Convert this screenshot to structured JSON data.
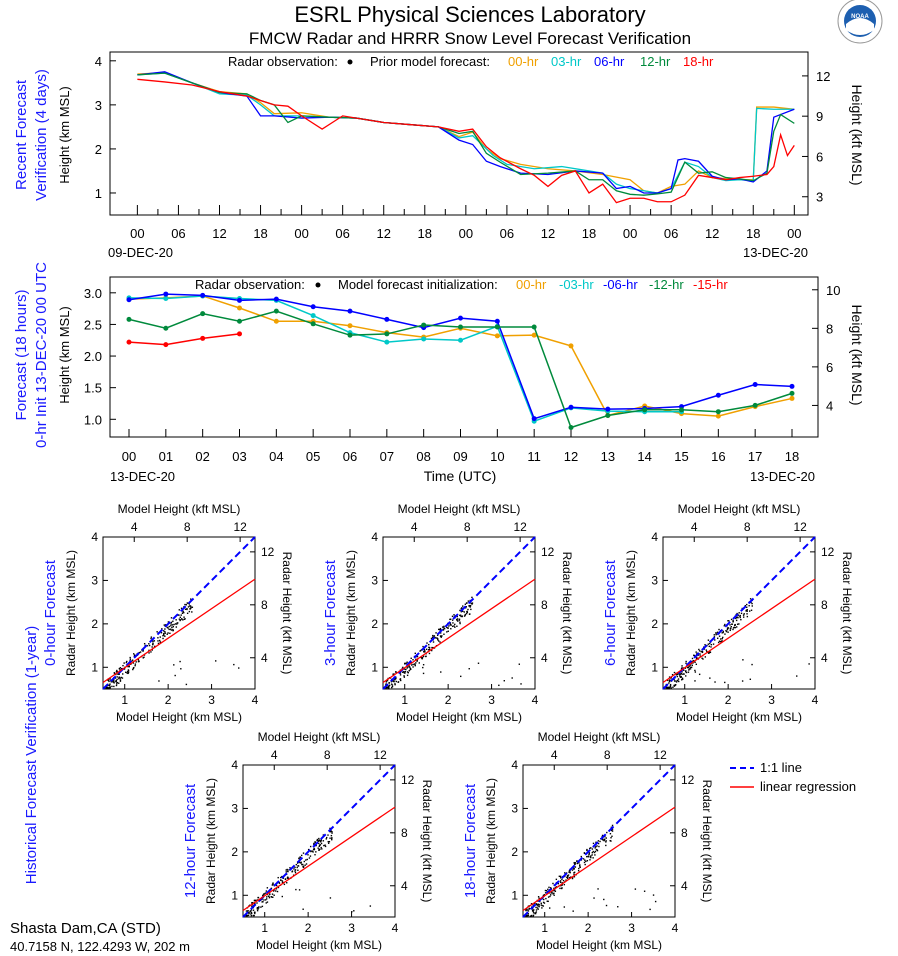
{
  "header": {
    "title": "ESRL Physical Sciences Laboratory",
    "subtitle": "FMCW Radar and HRRR Snow Level Forecast Verification",
    "logo_text": "NOAA"
  },
  "colors": {
    "00": "#f0a000",
    "03": "#00c8c8",
    "06": "#0000ff",
    "12": "#008a3c",
    "15": "#ff0000",
    "18": "#ff0000",
    "label": "#1a1aff"
  },
  "chart_data": [
    {
      "type": "line",
      "title_lines": [
        "Recent Forecast",
        "Verification (4 days)"
      ],
      "ylabel": "Height (km MSL)",
      "ylabel_right": "Height (kft MSL)",
      "legend_obs": "Radar observation:",
      "legend_title": "Prior model forecast:",
      "xticks": [
        "00",
        "06",
        "12",
        "18",
        "00",
        "06",
        "12",
        "18",
        "00",
        "06",
        "12",
        "18",
        "00",
        "06",
        "12",
        "18",
        "00"
      ],
      "xtick_hours": [
        0,
        6,
        12,
        18,
        24,
        30,
        36,
        42,
        48,
        54,
        60,
        66,
        72,
        78,
        84,
        90,
        96
      ],
      "yticks": [
        1,
        2,
        3,
        4
      ],
      "yticks_right": [
        3,
        6,
        9,
        12
      ],
      "date_start": "09-DEC-20",
      "date_end": "13-DEC-20",
      "ylim": [
        0.5,
        4.2
      ],
      "xlim": [
        -4,
        98
      ],
      "series": [
        {
          "name": "00-hr",
          "color_key": "00",
          "x": [
            0,
            4,
            8,
            12,
            16,
            18,
            20,
            24,
            28,
            32,
            36,
            40,
            44,
            47,
            49,
            51,
            53,
            56,
            60,
            64,
            68,
            72,
            74,
            76,
            78,
            80,
            82,
            84,
            88,
            90,
            90.5,
            93,
            96
          ],
          "y": [
            3.7,
            3.73,
            3.5,
            3.3,
            3.25,
            3.05,
            2.8,
            2.82,
            2.72,
            2.7,
            2.6,
            2.55,
            2.5,
            2.28,
            2.38,
            2.0,
            1.78,
            1.65,
            1.55,
            1.5,
            1.42,
            1.3,
            1.05,
            1.0,
            1.15,
            1.2,
            1.5,
            1.35,
            1.3,
            1.3,
            2.95,
            2.95,
            2.9
          ]
        },
        {
          "name": "03-hr",
          "color_key": "03",
          "x": [
            0,
            4,
            8,
            12,
            16,
            18,
            20,
            24,
            28,
            32,
            36,
            40,
            44,
            47,
            49,
            52,
            54,
            58,
            62,
            66,
            68,
            70,
            72,
            74,
            76,
            78,
            80,
            82,
            84,
            86,
            88,
            90,
            90.5,
            93,
            96
          ],
          "y": [
            3.68,
            3.72,
            3.5,
            3.25,
            3.22,
            3.0,
            2.75,
            2.75,
            2.72,
            2.7,
            2.6,
            2.55,
            2.5,
            2.25,
            2.3,
            1.85,
            1.65,
            1.55,
            1.6,
            1.5,
            1.45,
            1.2,
            1.1,
            1.05,
            1.0,
            1.1,
            1.7,
            1.6,
            1.35,
            1.28,
            1.3,
            1.28,
            2.92,
            2.9,
            2.9
          ]
        },
        {
          "name": "06-hr",
          "color_key": "06",
          "x": [
            0,
            4,
            8,
            12,
            16,
            18,
            20,
            24,
            28,
            32,
            36,
            40,
            44,
            47,
            49,
            51,
            53,
            56,
            60,
            64,
            68,
            70,
            72,
            74,
            76,
            78,
            79,
            80,
            82,
            84,
            86,
            88,
            90,
            92,
            93,
            96
          ],
          "y": [
            3.68,
            3.75,
            3.5,
            3.28,
            3.2,
            2.75,
            2.75,
            2.7,
            2.72,
            2.7,
            2.6,
            2.55,
            2.5,
            2.2,
            2.1,
            1.72,
            1.6,
            1.45,
            1.42,
            1.5,
            1.45,
            1.1,
            1.15,
            1.0,
            1.0,
            1.1,
            1.75,
            1.78,
            1.72,
            1.38,
            1.3,
            1.32,
            1.25,
            1.5,
            2.72,
            2.9
          ]
        },
        {
          "name": "12-hr",
          "color_key": "12",
          "x": [
            0,
            4,
            8,
            12,
            16,
            18,
            20,
            22,
            24,
            28,
            32,
            36,
            40,
            44,
            47,
            49,
            51,
            53,
            56,
            60,
            64,
            66,
            68,
            70,
            72,
            74,
            76,
            78,
            80,
            82,
            84,
            86,
            88,
            90,
            92,
            93,
            94,
            96
          ],
          "y": [
            3.68,
            3.72,
            3.5,
            3.28,
            3.25,
            3.1,
            3.0,
            2.6,
            2.75,
            2.72,
            2.7,
            2.6,
            2.55,
            2.5,
            2.35,
            2.4,
            1.9,
            1.7,
            1.42,
            1.45,
            1.5,
            1.3,
            1.3,
            1.05,
            0.97,
            0.95,
            0.98,
            1.02,
            1.7,
            1.45,
            1.48,
            1.35,
            1.32,
            1.28,
            1.45,
            2.4,
            2.78,
            2.58
          ]
        },
        {
          "name": "18-hr",
          "color_key": "18",
          "x": [
            0,
            4,
            8,
            12,
            16,
            18,
            20,
            22,
            24,
            27,
            30,
            32,
            36,
            40,
            44,
            47,
            49,
            51,
            53,
            56,
            58,
            60,
            62,
            64,
            66,
            68,
            70,
            72,
            74,
            76,
            78,
            80,
            82,
            84,
            86,
            88,
            90,
            92,
            93,
            94,
            95,
            96
          ],
          "y": [
            3.58,
            3.52,
            3.45,
            3.3,
            3.2,
            3.1,
            3.0,
            2.97,
            2.75,
            2.45,
            2.75,
            2.7,
            2.6,
            2.55,
            2.5,
            2.4,
            2.45,
            2.05,
            1.8,
            1.55,
            1.4,
            1.15,
            1.4,
            1.5,
            1.0,
            1.2,
            0.78,
            0.88,
            0.88,
            0.8,
            0.8,
            0.95,
            1.4,
            1.35,
            1.3,
            1.35,
            1.38,
            1.42,
            1.6,
            2.32,
            1.85,
            2.08
          ]
        }
      ]
    },
    {
      "type": "line",
      "title_lines": [
        "Forecast (18 hours)",
        "0-hr Init 13-DEC-20 00 UTC"
      ],
      "ylabel": "Height (km MSL)",
      "ylabel_right": "Height (kft MSL)",
      "legend_obs": "Radar observation:",
      "legend_title": "Model forecast initialization:",
      "xlabel": "Time (UTC)",
      "xticks": [
        "00",
        "01",
        "02",
        "03",
        "04",
        "05",
        "06",
        "07",
        "08",
        "09",
        "10",
        "11",
        "12",
        "13",
        "14",
        "15",
        "16",
        "17",
        "18"
      ],
      "yticks": [
        "1.0",
        "1.5",
        "2.0",
        "2.5",
        "3.0"
      ],
      "yticks_right": [
        4,
        6,
        8,
        10
      ],
      "date_start": "13-DEC-20",
      "date_end": "13-DEC-20",
      "ylim": [
        0.72,
        3.25
      ],
      "series": [
        {
          "name": "00-hr",
          "color_key": "00",
          "y": [
            2.9,
            2.92,
            2.95,
            2.76,
            2.55,
            2.55,
            2.48,
            2.37,
            2.3,
            2.44,
            2.32,
            2.33,
            2.16,
            1.06,
            1.21,
            1.09,
            1.05,
            1.2,
            1.33
          ]
        },
        {
          "name": "-03-hr",
          "color_key": "03",
          "y": [
            2.92,
            2.91,
            2.95,
            2.91,
            2.88,
            2.64,
            2.37,
            2.22,
            2.27,
            2.25,
            2.47,
            0.97,
            1.18,
            1.13,
            1.12,
            1.12,
            null,
            null,
            null
          ]
        },
        {
          "name": "-06-hr",
          "color_key": "06",
          "y": [
            2.89,
            2.98,
            2.96,
            2.88,
            2.9,
            2.78,
            2.71,
            2.58,
            2.45,
            2.6,
            2.55,
            1.01,
            1.19,
            1.16,
            1.17,
            1.2,
            1.38,
            1.55,
            1.52
          ]
        },
        {
          "name": "-12-hr",
          "color_key": "12",
          "y": [
            2.58,
            2.44,
            2.67,
            2.55,
            2.71,
            2.51,
            2.33,
            2.35,
            2.49,
            2.46,
            2.46,
            2.46,
            0.87,
            1.06,
            1.15,
            1.15,
            1.12,
            1.22,
            1.41
          ]
        },
        {
          "name": "-15-hr",
          "color_key": "15",
          "y": [
            2.22,
            2.18,
            2.28,
            2.35,
            null,
            null,
            null,
            null,
            null,
            null,
            null,
            null,
            null,
            null,
            null,
            null,
            null,
            null,
            null
          ]
        }
      ]
    },
    {
      "type": "scatter",
      "group_title": "Historical Forecast Verification (1-year)",
      "xlabel": "Model Height (km MSL)",
      "xlabel_top": "Model Height (kft MSL)",
      "ylabel": "Radar Height (km MSL)",
      "ylabel_right": "Radar Height (kft MSL)",
      "xlim": [
        0.5,
        4
      ],
      "ylim": [
        0.5,
        4
      ],
      "ticks_km": [
        1,
        2,
        3,
        4
      ],
      "ticks_kft": [
        4,
        8,
        12
      ],
      "regression": {
        "intercept": 0.31,
        "slope": 0.68
      },
      "legend": {
        "one_to_one": "1:1 line",
        "regression": "linear regression"
      },
      "panels": [
        {
          "title": "0-hour Forecast"
        },
        {
          "title": "3-hour Forecast"
        },
        {
          "title": "6-hour Forecast"
        },
        {
          "title": "12-hour Forecast"
        },
        {
          "title": "18-hour Forecast"
        }
      ]
    }
  ],
  "footer": {
    "station": "Shasta Dam,CA (STD)",
    "location": "40.7158 N, 122.4293 W, 202 m"
  }
}
